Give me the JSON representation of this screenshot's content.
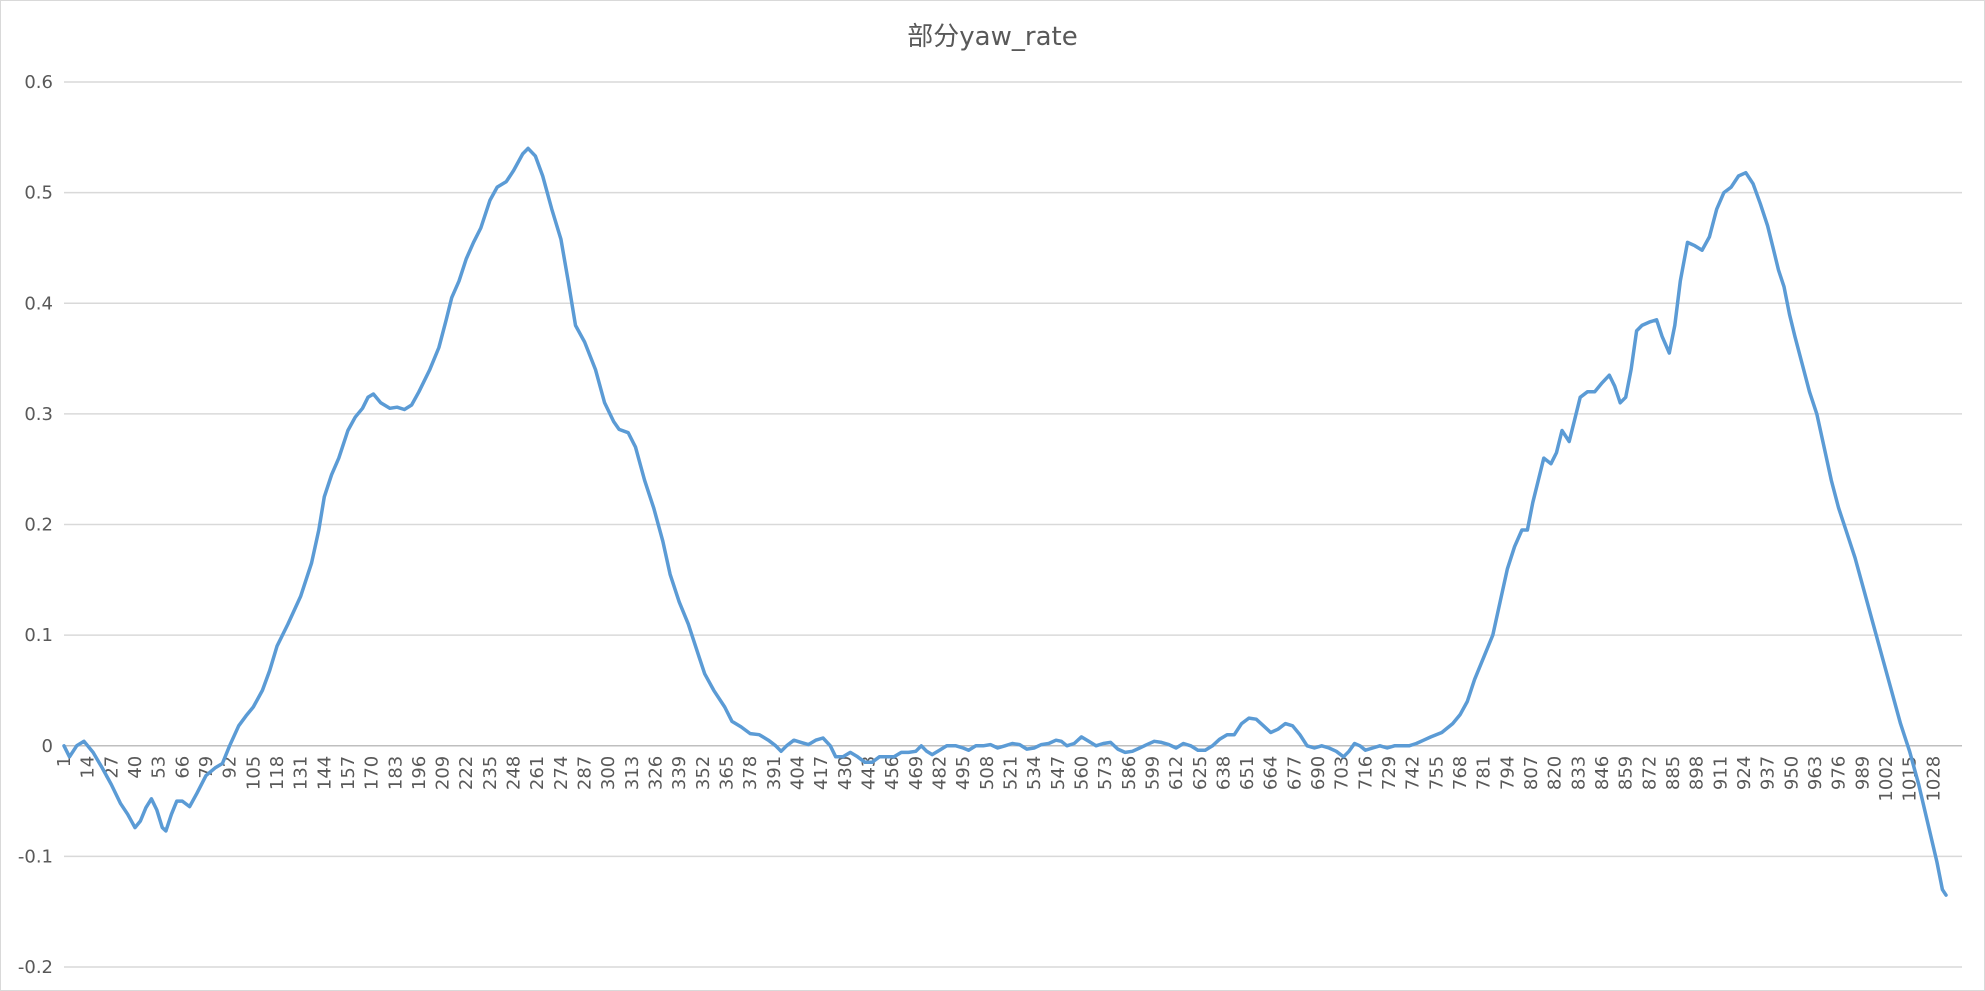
{
  "chart_data": {
    "type": "line",
    "title": "部分yaw_rate",
    "xlabel": "",
    "ylabel": "",
    "ylim": [
      -0.2,
      0.6
    ],
    "y_ticks": [
      "-0.2",
      "-0.1",
      "0",
      "0.1",
      "0.2",
      "0.3",
      "0.4",
      "0.5",
      "0.6"
    ],
    "xlim": [
      1,
      1035
    ],
    "x_ticks": [
      "1",
      "14",
      "27",
      "40",
      "53",
      "66",
      "79",
      "92",
      "105",
      "118",
      "131",
      "144",
      "157",
      "170",
      "183",
      "196",
      "209",
      "222",
      "235",
      "248",
      "261",
      "274",
      "287",
      "300",
      "313",
      "326",
      "339",
      "352",
      "365",
      "378",
      "391",
      "404",
      "417",
      "430",
      "443",
      "456",
      "469",
      "482",
      "495",
      "508",
      "521",
      "534",
      "547",
      "560",
      "573",
      "586",
      "599",
      "612",
      "625",
      "638",
      "651",
      "664",
      "677",
      "690",
      "703",
      "716",
      "729",
      "742",
      "755",
      "768",
      "781",
      "794",
      "807",
      "820",
      "833",
      "846",
      "859",
      "872",
      "885",
      "898",
      "911",
      "924",
      "937",
      "950",
      "963",
      "976",
      "989",
      "1002",
      "1015",
      "1028"
    ],
    "grid": true,
    "legend": "none",
    "series": [
      {
        "color": "#5b9bd5",
        "points": [
          [
            1,
            0.0
          ],
          [
            4,
            -0.01
          ],
          [
            8,
            0.0
          ],
          [
            12,
            0.004
          ],
          [
            17,
            -0.006
          ],
          [
            22,
            -0.02
          ],
          [
            27,
            -0.035
          ],
          [
            32,
            -0.052
          ],
          [
            36,
            -0.062
          ],
          [
            40,
            -0.074
          ],
          [
            43,
            -0.068
          ],
          [
            46,
            -0.056
          ],
          [
            49,
            -0.048
          ],
          [
            52,
            -0.058
          ],
          [
            55,
            -0.074
          ],
          [
            57,
            -0.077
          ],
          [
            60,
            -0.062
          ],
          [
            63,
            -0.05
          ],
          [
            66,
            -0.05
          ],
          [
            70,
            -0.055
          ],
          [
            74,
            -0.043
          ],
          [
            79,
            -0.027
          ],
          [
            84,
            -0.02
          ],
          [
            88,
            -0.016
          ],
          [
            92,
            0.0
          ],
          [
            97,
            0.018
          ],
          [
            101,
            0.027
          ],
          [
            105,
            0.035
          ],
          [
            110,
            0.05
          ],
          [
            114,
            0.068
          ],
          [
            118,
            0.09
          ],
          [
            124,
            0.11
          ],
          [
            131,
            0.135
          ],
          [
            137,
            0.165
          ],
          [
            141,
            0.195
          ],
          [
            144,
            0.225
          ],
          [
            148,
            0.245
          ],
          [
            152,
            0.26
          ],
          [
            157,
            0.285
          ],
          [
            161,
            0.297
          ],
          [
            165,
            0.305
          ],
          [
            168,
            0.315
          ],
          [
            171,
            0.318
          ],
          [
            175,
            0.31
          ],
          [
            180,
            0.305
          ],
          [
            184,
            0.306
          ],
          [
            188,
            0.304
          ],
          [
            192,
            0.308
          ],
          [
            196,
            0.32
          ],
          [
            202,
            0.34
          ],
          [
            207,
            0.36
          ],
          [
            211,
            0.385
          ],
          [
            214,
            0.405
          ],
          [
            218,
            0.42
          ],
          [
            222,
            0.44
          ],
          [
            226,
            0.455
          ],
          [
            230,
            0.468
          ],
          [
            235,
            0.493
          ],
          [
            239,
            0.505
          ],
          [
            244,
            0.51
          ],
          [
            248,
            0.52
          ],
          [
            253,
            0.535
          ],
          [
            256,
            0.54
          ],
          [
            260,
            0.533
          ],
          [
            264,
            0.515
          ],
          [
            269,
            0.485
          ],
          [
            274,
            0.458
          ],
          [
            278,
            0.42
          ],
          [
            282,
            0.38
          ],
          [
            287,
            0.365
          ],
          [
            293,
            0.34
          ],
          [
            298,
            0.31
          ],
          [
            303,
            0.293
          ],
          [
            306,
            0.286
          ],
          [
            311,
            0.283
          ],
          [
            315,
            0.27
          ],
          [
            320,
            0.24
          ],
          [
            325,
            0.215
          ],
          [
            330,
            0.185
          ],
          [
            334,
            0.155
          ],
          [
            339,
            0.13
          ],
          [
            344,
            0.11
          ],
          [
            350,
            0.08
          ],
          [
            353,
            0.065
          ],
          [
            358,
            0.05
          ],
          [
            364,
            0.035
          ],
          [
            368,
            0.022
          ],
          [
            373,
            0.017
          ],
          [
            378,
            0.011
          ],
          [
            383,
            0.01
          ],
          [
            388,
            0.005
          ],
          [
            392,
            0.0
          ],
          [
            395,
            -0.005
          ],
          [
            398,
            0.0
          ],
          [
            402,
            0.005
          ],
          [
            406,
            0.003
          ],
          [
            410,
            0.001
          ],
          [
            414,
            0.005
          ],
          [
            418,
            0.007
          ],
          [
            422,
            0.0
          ],
          [
            425,
            -0.01
          ],
          [
            429,
            -0.01
          ],
          [
            433,
            -0.006
          ],
          [
            437,
            -0.01
          ],
          [
            441,
            -0.015
          ],
          [
            445,
            -0.015
          ],
          [
            449,
            -0.01
          ],
          [
            453,
            -0.01
          ],
          [
            457,
            -0.01
          ],
          [
            461,
            -0.006
          ],
          [
            465,
            -0.006
          ],
          [
            469,
            -0.005
          ],
          [
            472,
            0.0
          ],
          [
            475,
            -0.005
          ],
          [
            478,
            -0.008
          ],
          [
            482,
            -0.004
          ],
          [
            486,
            0.0
          ],
          [
            491,
            0.0
          ],
          [
            495,
            -0.002
          ],
          [
            498,
            -0.004
          ],
          [
            502,
            0.0
          ],
          [
            506,
            0.0
          ],
          [
            510,
            0.001
          ],
          [
            514,
            -0.002
          ],
          [
            518,
            0.0
          ],
          [
            522,
            0.002
          ],
          [
            526,
            0.001
          ],
          [
            530,
            -0.003
          ],
          [
            534,
            -0.002
          ],
          [
            538,
            0.001
          ],
          [
            542,
            0.002
          ],
          [
            546,
            0.005
          ],
          [
            549,
            0.004
          ],
          [
            552,
            0.0
          ],
          [
            556,
            0.002
          ],
          [
            560,
            0.008
          ],
          [
            564,
            0.004
          ],
          [
            568,
            0.0
          ],
          [
            572,
            0.002
          ],
          [
            576,
            0.003
          ],
          [
            580,
            -0.003
          ],
          [
            584,
            -0.006
          ],
          [
            588,
            -0.005
          ],
          [
            592,
            -0.002
          ],
          [
            596,
            0.001
          ],
          [
            600,
            0.004
          ],
          [
            604,
            0.003
          ],
          [
            608,
            0.001
          ],
          [
            612,
            -0.002
          ],
          [
            616,
            0.002
          ],
          [
            620,
            0.0
          ],
          [
            624,
            -0.004
          ],
          [
            628,
            -0.004
          ],
          [
            632,
            0.0
          ],
          [
            636,
            0.006
          ],
          [
            640,
            0.01
          ],
          [
            644,
            0.01
          ],
          [
            648,
            0.02
          ],
          [
            652,
            0.025
          ],
          [
            656,
            0.024
          ],
          [
            660,
            0.018
          ],
          [
            664,
            0.012
          ],
          [
            668,
            0.015
          ],
          [
            672,
            0.02
          ],
          [
            676,
            0.018
          ],
          [
            680,
            0.01
          ],
          [
            684,
            0.0
          ],
          [
            688,
            -0.002
          ],
          [
            692,
            0.0
          ],
          [
            696,
            -0.002
          ],
          [
            700,
            -0.005
          ],
          [
            704,
            -0.01
          ],
          [
            707,
            -0.005
          ],
          [
            710,
            0.002
          ],
          [
            713,
            0.0
          ],
          [
            716,
            -0.004
          ],
          [
            720,
            -0.002
          ],
          [
            724,
            0.0
          ],
          [
            728,
            -0.002
          ],
          [
            732,
            0.0
          ],
          [
            736,
            0.0
          ],
          [
            740,
            0.0
          ],
          [
            744,
            0.002
          ],
          [
            748,
            0.005
          ],
          [
            752,
            0.008
          ],
          [
            758,
            0.012
          ],
          [
            764,
            0.02
          ],
          [
            768,
            0.028
          ],
          [
            772,
            0.04
          ],
          [
            776,
            0.06
          ],
          [
            781,
            0.08
          ],
          [
            786,
            0.1
          ],
          [
            790,
            0.13
          ],
          [
            794,
            0.16
          ],
          [
            798,
            0.18
          ],
          [
            802,
            0.195
          ],
          [
            805,
            0.195
          ],
          [
            808,
            0.22
          ],
          [
            811,
            0.24
          ],
          [
            814,
            0.26
          ],
          [
            818,
            0.255
          ],
          [
            821,
            0.265
          ],
          [
            824,
            0.285
          ],
          [
            828,
            0.275
          ],
          [
            831,
            0.295
          ],
          [
            834,
            0.315
          ],
          [
            838,
            0.32
          ],
          [
            842,
            0.32
          ],
          [
            846,
            0.328
          ],
          [
            850,
            0.335
          ],
          [
            853,
            0.325
          ],
          [
            856,
            0.31
          ],
          [
            859,
            0.315
          ],
          [
            862,
            0.34
          ],
          [
            865,
            0.375
          ],
          [
            868,
            0.38
          ],
          [
            872,
            0.383
          ],
          [
            876,
            0.385
          ],
          [
            879,
            0.37
          ],
          [
            883,
            0.355
          ],
          [
            886,
            0.38
          ],
          [
            889,
            0.42
          ],
          [
            893,
            0.455
          ],
          [
            897,
            0.452
          ],
          [
            901,
            0.448
          ],
          [
            905,
            0.46
          ],
          [
            909,
            0.485
          ],
          [
            913,
            0.5
          ],
          [
            917,
            0.505
          ],
          [
            921,
            0.515
          ],
          [
            925,
            0.518
          ],
          [
            929,
            0.508
          ],
          [
            933,
            0.49
          ],
          [
            937,
            0.47
          ],
          [
            940,
            0.45
          ],
          [
            943,
            0.43
          ],
          [
            946,
            0.415
          ],
          [
            949,
            0.39
          ],
          [
            952,
            0.37
          ],
          [
            956,
            0.345
          ],
          [
            960,
            0.32
          ],
          [
            964,
            0.3
          ],
          [
            968,
            0.27
          ],
          [
            972,
            0.24
          ],
          [
            976,
            0.215
          ],
          [
            980,
            0.195
          ],
          [
            985,
            0.17
          ],
          [
            990,
            0.14
          ],
          [
            995,
            0.11
          ],
          [
            1000,
            0.08
          ],
          [
            1005,
            0.05
          ],
          [
            1010,
            0.02
          ],
          [
            1015,
            -0.005
          ],
          [
            1020,
            -0.035
          ],
          [
            1025,
            -0.07
          ],
          [
            1030,
            -0.105
          ],
          [
            1033,
            -0.13
          ],
          [
            1035,
            -0.135
          ]
        ]
      }
    ]
  }
}
